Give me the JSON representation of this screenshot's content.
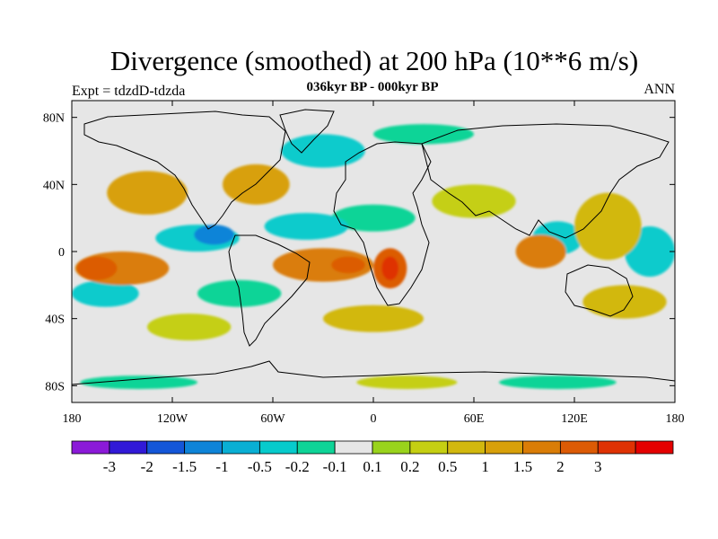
{
  "title": "Divergence (smoothed) at 200 hPa (10**6 m/s)",
  "subtitle": "036kyr BP - 000kyr BP",
  "left_label": "Expt = tdzdD-tdzda",
  "right_label": "ANN",
  "colors": {
    "land_background": "#e6e6e6",
    "outline": "#000000"
  },
  "map_data": {
    "type": "map",
    "projection": "cylindrical-equidistant",
    "lon_range": [
      -180,
      180
    ],
    "lat_range": [
      -90,
      90
    ],
    "lon_ticks": [
      {
        "value": -180,
        "label": "180"
      },
      {
        "value": -120,
        "label": "120W"
      },
      {
        "value": -60,
        "label": "60W"
      },
      {
        "value": 0,
        "label": "0"
      },
      {
        "value": 60,
        "label": "60E"
      },
      {
        "value": 120,
        "label": "120E"
      },
      {
        "value": 180,
        "label": "180"
      }
    ],
    "lat_ticks": [
      {
        "value": 80,
        "label": "80N"
      },
      {
        "value": 40,
        "label": "40N"
      },
      {
        "value": 0,
        "label": "0"
      },
      {
        "value": -40,
        "label": "40S"
      },
      {
        "value": -80,
        "label": "80S"
      }
    ],
    "anomalies": [
      {
        "lon": -150,
        "lat": -10,
        "rx": 28,
        "ry": 10,
        "level": 5
      },
      {
        "lon": -165,
        "lat": -10,
        "rx": 12,
        "ry": 7,
        "level": 6
      },
      {
        "lon": -135,
        "lat": 35,
        "rx": 24,
        "ry": 13,
        "level": 4
      },
      {
        "lon": -70,
        "lat": 40,
        "rx": 20,
        "ry": 12,
        "level": 4
      },
      {
        "lon": -30,
        "lat": -8,
        "rx": 30,
        "ry": 10,
        "level": 5
      },
      {
        "lon": -15,
        "lat": -8,
        "rx": 10,
        "ry": 5,
        "level": 6
      },
      {
        "lon": 10,
        "lat": -10,
        "rx": 10,
        "ry": 12,
        "level": 6
      },
      {
        "lon": 10,
        "lat": -10,
        "rx": 5,
        "ry": 7,
        "level": 7
      },
      {
        "lon": 100,
        "lat": 0,
        "rx": 15,
        "ry": 10,
        "level": 5
      },
      {
        "lon": 140,
        "lat": 15,
        "rx": 20,
        "ry": 20,
        "level": 3
      },
      {
        "lon": 60,
        "lat": 30,
        "rx": 25,
        "ry": 10,
        "level": 2
      },
      {
        "lon": -110,
        "lat": -45,
        "rx": 25,
        "ry": 8,
        "level": 2
      },
      {
        "lon": 0,
        "lat": -40,
        "rx": 30,
        "ry": 8,
        "level": 3
      },
      {
        "lon": 150,
        "lat": -30,
        "rx": 25,
        "ry": 10,
        "level": 3
      },
      {
        "lon": 20,
        "lat": -78,
        "rx": 30,
        "ry": 4,
        "level": 2
      },
      {
        "lon": -105,
        "lat": 8,
        "rx": 25,
        "ry": 8,
        "level": -2
      },
      {
        "lon": -95,
        "lat": 10,
        "rx": 12,
        "ry": 6,
        "level": -4
      },
      {
        "lon": -40,
        "lat": 15,
        "rx": 25,
        "ry": 8,
        "level": -2
      },
      {
        "lon": -160,
        "lat": -25,
        "rx": 20,
        "ry": 8,
        "level": -2
      },
      {
        "lon": -80,
        "lat": -25,
        "rx": 25,
        "ry": 8,
        "level": -1
      },
      {
        "lon": 110,
        "lat": 8,
        "rx": 15,
        "ry": 10,
        "level": -2
      },
      {
        "lon": 165,
        "lat": 0,
        "rx": 15,
        "ry": 15,
        "level": -2
      },
      {
        "lon": -30,
        "lat": 60,
        "rx": 25,
        "ry": 10,
        "level": -2
      },
      {
        "lon": 30,
        "lat": 70,
        "rx": 30,
        "ry": 6,
        "level": -1
      },
      {
        "lon": -140,
        "lat": -78,
        "rx": 35,
        "ry": 4,
        "level": -1
      },
      {
        "lon": 110,
        "lat": -78,
        "rx": 35,
        "ry": 4,
        "level": -1
      },
      {
        "lon": 0,
        "lat": 20,
        "rx": 25,
        "ry": 8,
        "level": -1
      }
    ]
  },
  "colorbar": {
    "colors": [
      "#8b1ad8",
      "#3119d7",
      "#1456d8",
      "#0e84d8",
      "#09afd4",
      "#07cbcc",
      "#0ed497",
      "#e6e6e6",
      "#99d31c",
      "#c5cf12",
      "#d2b80e",
      "#d8a00a",
      "#da7d07",
      "#dc5b05",
      "#df3203",
      "#e40000"
    ],
    "labels": [
      "-3",
      "-2",
      "-1.5",
      "-1",
      "-0.5",
      "-0.2",
      "-0.1",
      "0.1",
      "0.2",
      "0.5",
      "1",
      "1.5",
      "2",
      "3"
    ]
  }
}
